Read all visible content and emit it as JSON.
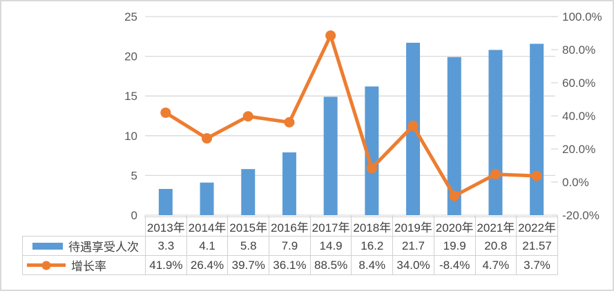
{
  "figure": {
    "background": "#ffffff",
    "border_color": "#d9d9d9"
  },
  "chart_data": {
    "type": "combo",
    "title": "",
    "categories": [
      "2013年",
      "2014年",
      "2015年",
      "2016年",
      "2017年",
      "2018年",
      "2019年",
      "2020年",
      "2021年",
      "2022年"
    ],
    "series": [
      {
        "name": "待遇享受人次",
        "type": "bar",
        "axis": "left",
        "color": "#5B9BD5",
        "values": [
          3.3,
          4.1,
          5.8,
          7.9,
          14.9,
          16.2,
          21.7,
          19.9,
          20.8,
          21.57
        ],
        "labels": [
          "3.3",
          "4.1",
          "5.8",
          "7.9",
          "14.9",
          "16.2",
          "21.7",
          "19.9",
          "20.8",
          "21.57"
        ]
      },
      {
        "name": "增长率",
        "type": "line",
        "axis": "right",
        "color": "#ED7D31",
        "values": [
          41.9,
          26.4,
          39.7,
          36.1,
          88.5,
          8.4,
          34.0,
          -8.4,
          4.7,
          3.7
        ],
        "labels": [
          "41.9%",
          "26.4%",
          "39.7%",
          "36.1%",
          "88.5%",
          "8.4%",
          "34.0%",
          "-8.4%",
          "4.7%",
          "3.7%"
        ]
      }
    ],
    "left_axis": {
      "min": 0,
      "max": 25,
      "step": 5,
      "labels": [
        "25",
        "20",
        "15",
        "10",
        "5",
        "0"
      ]
    },
    "right_axis": {
      "min": -20,
      "max": 100,
      "step": 20,
      "labels": [
        "100.0%",
        "80.0%",
        "60.0%",
        "40.0%",
        "20.0%",
        "0.0%",
        "-20.0%"
      ]
    },
    "gridlines": true,
    "gridline_color": "#d9d9d9",
    "axis_text_color": "#595959",
    "table_text_color": "#404040",
    "table_border_color": "#d0d0d0",
    "legend_position": "table-left"
  }
}
